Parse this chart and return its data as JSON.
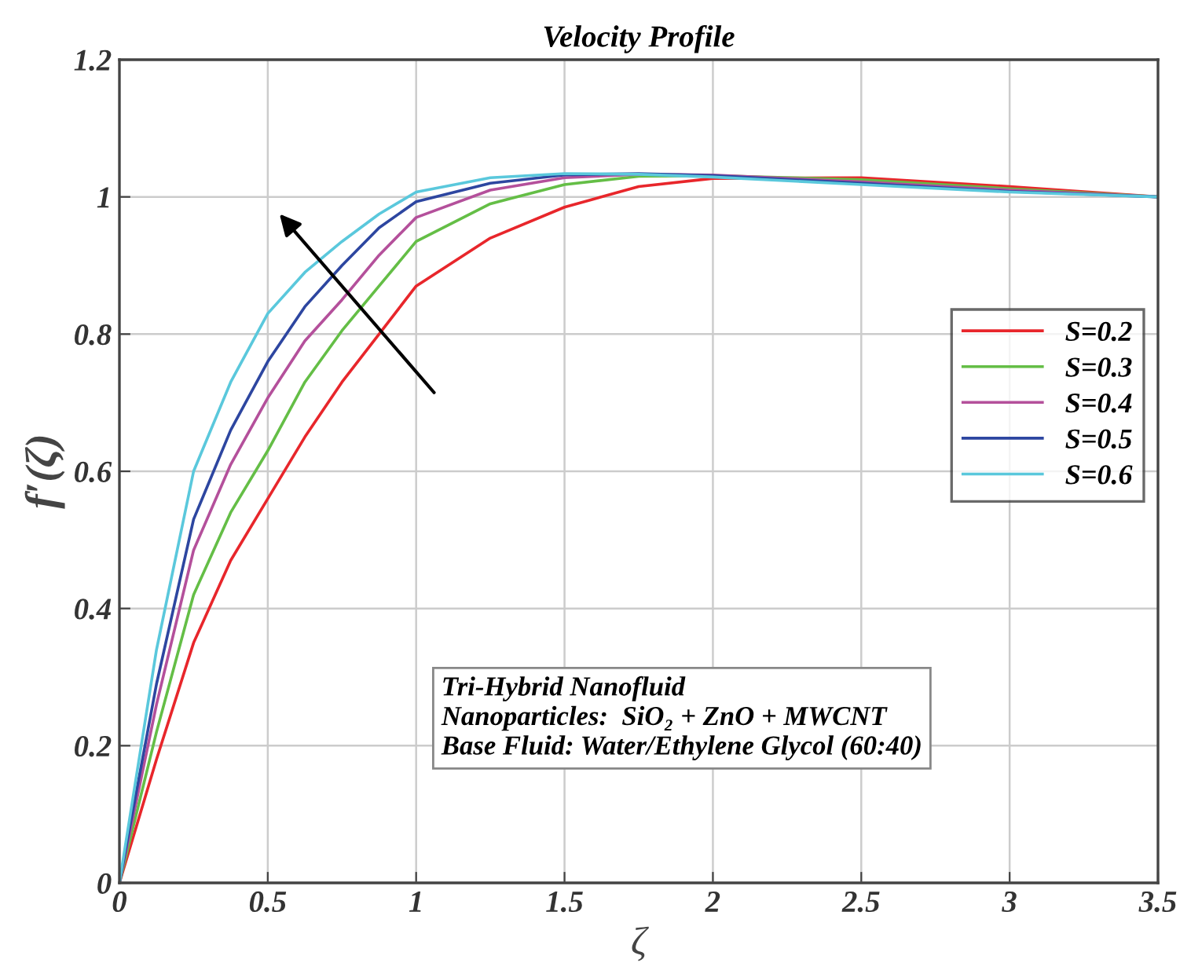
{
  "chart_data": {
    "type": "line",
    "title": "Velocity Profile",
    "xlabel": "ζ",
    "ylabel": "f′(ζ)",
    "x": [
      0,
      0.125,
      0.25,
      0.375,
      0.5,
      0.625,
      0.75,
      0.875,
      1,
      1.25,
      1.5,
      1.75,
      2,
      2.5,
      3,
      3.5
    ],
    "series": [
      {
        "name": "S=0.2",
        "color": "#e8262b",
        "values": [
          0,
          0.18,
          0.35,
          0.47,
          0.56,
          0.65,
          0.73,
          0.8,
          0.87,
          0.94,
          0.985,
          1.015,
          1.027,
          1.028,
          1.015,
          1.0
        ]
      },
      {
        "name": "S=0.3",
        "color": "#64be46",
        "values": [
          0,
          0.22,
          0.42,
          0.54,
          0.63,
          0.73,
          0.805,
          0.87,
          0.935,
          0.99,
          1.018,
          1.03,
          1.031,
          1.025,
          1.012,
          1.0
        ]
      },
      {
        "name": "S=0.4",
        "color": "#b4509b",
        "values": [
          0,
          0.26,
          0.485,
          0.61,
          0.707,
          0.79,
          0.85,
          0.915,
          0.97,
          1.01,
          1.028,
          1.033,
          1.032,
          1.022,
          1.01,
          1.0
        ]
      },
      {
        "name": "S=0.5",
        "color": "#2d46a0",
        "values": [
          0,
          0.29,
          0.53,
          0.66,
          0.76,
          0.84,
          0.9,
          0.955,
          0.993,
          1.02,
          1.032,
          1.034,
          1.031,
          1.02,
          1.008,
          1.0
        ]
      },
      {
        "name": "S=0.6",
        "color": "#5ac8dc",
        "values": [
          0,
          0.34,
          0.6,
          0.73,
          0.83,
          0.89,
          0.935,
          0.975,
          1.007,
          1.028,
          1.034,
          1.033,
          1.029,
          1.018,
          1.007,
          1.0
        ]
      }
    ],
    "xlim": [
      0,
      3.5
    ],
    "ylim": [
      0,
      1.2
    ],
    "xticks": [
      0,
      0.5,
      1,
      1.5,
      2,
      2.5,
      3,
      3.5
    ],
    "yticks": [
      0,
      0.2,
      0.4,
      0.6,
      0.8,
      1,
      1.2
    ],
    "annotations": [
      "Tri-Hybrid Nanofluid",
      "Nanoparticles:  SiO₂ + ZnO + MWCNT",
      "Base Fluid: Water/Ethylene Glycol (60:40)"
    ],
    "grid": true,
    "legend": "right",
    "line_style": "solid",
    "marker": "none"
  }
}
